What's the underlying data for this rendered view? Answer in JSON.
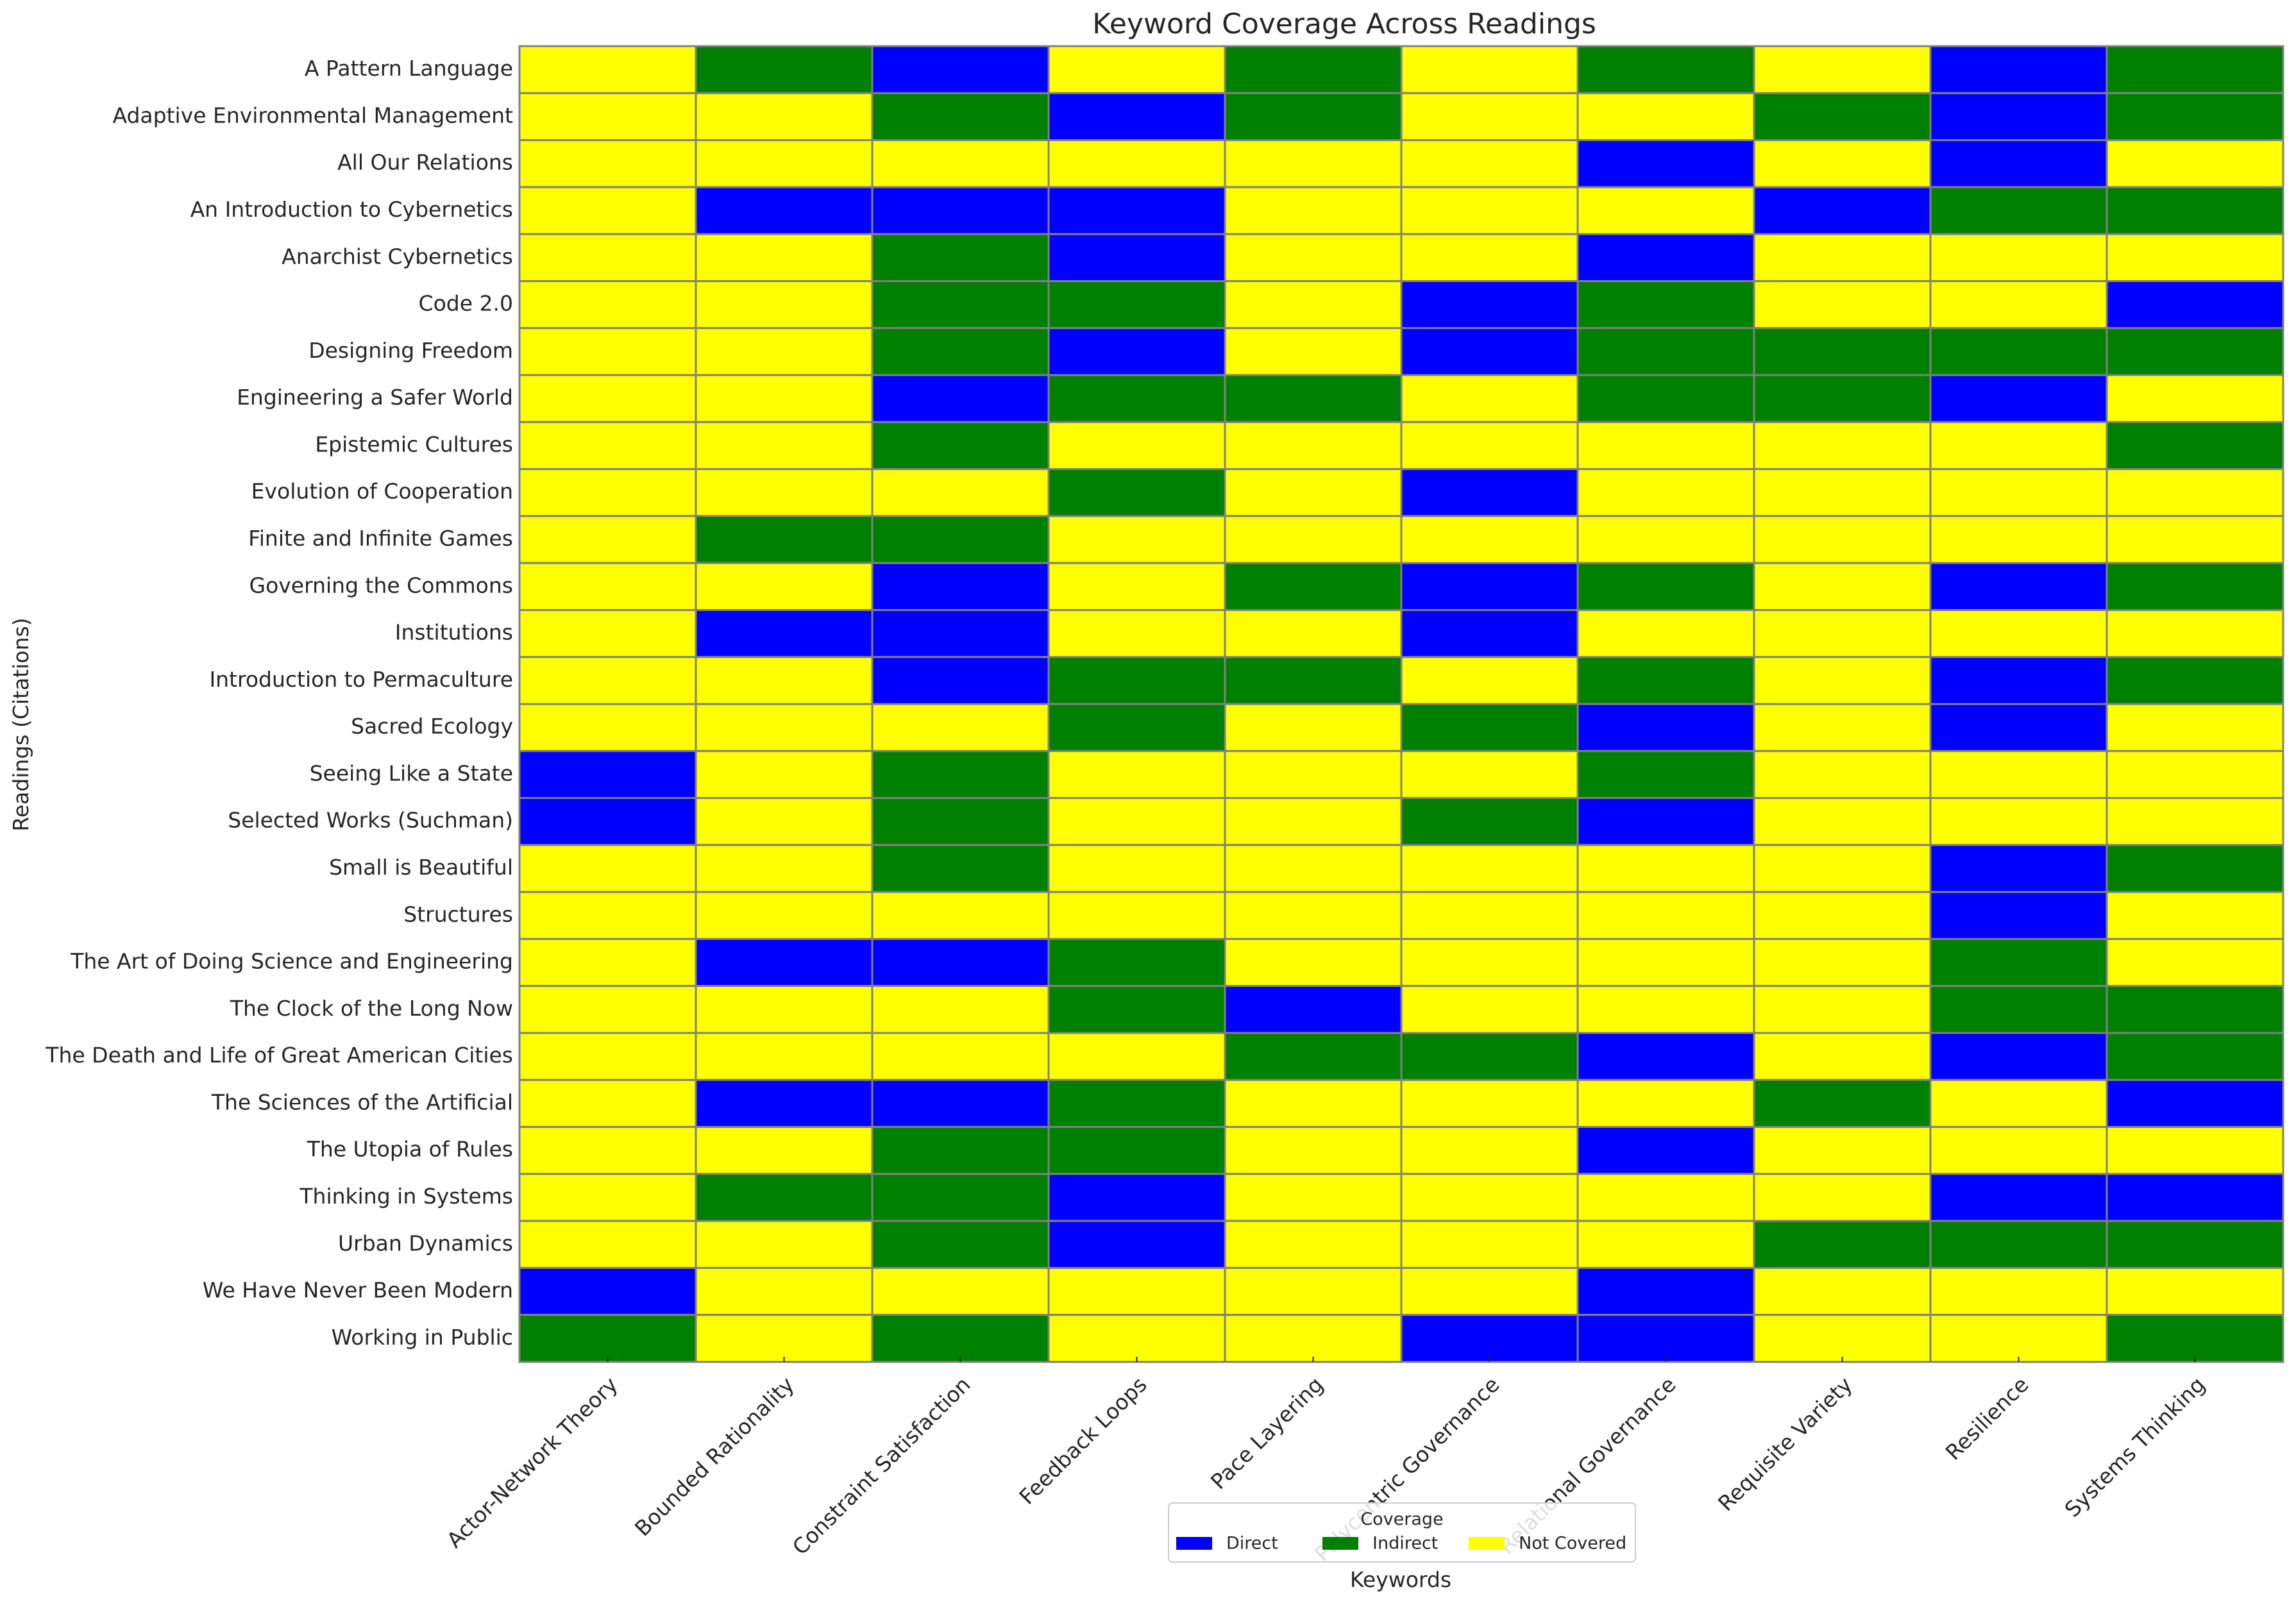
{
  "chart_data": {
    "type": "heatmap",
    "title": "Keyword Coverage Across Readings",
    "xlabel": "Keywords",
    "ylabel": "Readings (Citations)",
    "columns": [
      "Actor-Network Theory",
      "Bounded Rationality",
      "Constraint Satisfaction",
      "Feedback Loops",
      "Pace Layering",
      "Polycentric Governance",
      "Relational Governance",
      "Requisite Variety",
      "Resilience",
      "Systems Thinking"
    ],
    "rows": [
      "A Pattern Language",
      "Adaptive Environmental Management",
      "All Our Relations",
      "An Introduction to Cybernetics",
      "Anarchist Cybernetics",
      "Code 2.0",
      "Designing Freedom",
      "Engineering a Safer World",
      "Epistemic Cultures",
      "Evolution of Cooperation",
      "Finite and Infinite Games",
      "Governing the Commons",
      "Institutions",
      "Introduction to Permaculture",
      "Sacred Ecology",
      "Seeing Like a State",
      "Selected Works (Suchman)",
      "Small is Beautiful",
      "Structures",
      "The Art of Doing Science and Engineering",
      "The Clock of the Long Now",
      "The Death and Life of Great American Cities",
      "The Sciences of the Artificial",
      "The Utopia of Rules",
      "Thinking in Systems",
      "Urban Dynamics",
      "We Have Never Been Modern",
      "Working in Public"
    ],
    "categories": [
      "Direct",
      "Indirect",
      "Not Covered"
    ],
    "colors": {
      "Direct": "#0000ff",
      "Indirect": "#008000",
      "Not Covered": "#ffff00"
    },
    "values": [
      [
        "Not Covered",
        "Indirect",
        "Direct",
        "Not Covered",
        "Indirect",
        "Not Covered",
        "Indirect",
        "Not Covered",
        "Direct",
        "Indirect"
      ],
      [
        "Not Covered",
        "Not Covered",
        "Indirect",
        "Direct",
        "Indirect",
        "Not Covered",
        "Not Covered",
        "Indirect",
        "Direct",
        "Indirect"
      ],
      [
        "Not Covered",
        "Not Covered",
        "Not Covered",
        "Not Covered",
        "Not Covered",
        "Not Covered",
        "Direct",
        "Not Covered",
        "Direct",
        "Not Covered"
      ],
      [
        "Not Covered",
        "Direct",
        "Direct",
        "Direct",
        "Not Covered",
        "Not Covered",
        "Not Covered",
        "Direct",
        "Indirect",
        "Indirect"
      ],
      [
        "Not Covered",
        "Not Covered",
        "Indirect",
        "Direct",
        "Not Covered",
        "Not Covered",
        "Direct",
        "Not Covered",
        "Not Covered",
        "Not Covered"
      ],
      [
        "Not Covered",
        "Not Covered",
        "Indirect",
        "Indirect",
        "Not Covered",
        "Direct",
        "Indirect",
        "Not Covered",
        "Not Covered",
        "Direct"
      ],
      [
        "Not Covered",
        "Not Covered",
        "Indirect",
        "Direct",
        "Not Covered",
        "Direct",
        "Indirect",
        "Indirect",
        "Indirect",
        "Indirect"
      ],
      [
        "Not Covered",
        "Not Covered",
        "Direct",
        "Indirect",
        "Indirect",
        "Not Covered",
        "Indirect",
        "Indirect",
        "Direct",
        "Not Covered"
      ],
      [
        "Not Covered",
        "Not Covered",
        "Indirect",
        "Not Covered",
        "Not Covered",
        "Not Covered",
        "Not Covered",
        "Not Covered",
        "Not Covered",
        "Indirect"
      ],
      [
        "Not Covered",
        "Not Covered",
        "Not Covered",
        "Indirect",
        "Not Covered",
        "Direct",
        "Not Covered",
        "Not Covered",
        "Not Covered",
        "Not Covered"
      ],
      [
        "Not Covered",
        "Indirect",
        "Indirect",
        "Not Covered",
        "Not Covered",
        "Not Covered",
        "Not Covered",
        "Not Covered",
        "Not Covered",
        "Not Covered"
      ],
      [
        "Not Covered",
        "Not Covered",
        "Direct",
        "Not Covered",
        "Indirect",
        "Direct",
        "Indirect",
        "Not Covered",
        "Direct",
        "Indirect"
      ],
      [
        "Not Covered",
        "Direct",
        "Direct",
        "Not Covered",
        "Not Covered",
        "Direct",
        "Not Covered",
        "Not Covered",
        "Not Covered",
        "Not Covered"
      ],
      [
        "Not Covered",
        "Not Covered",
        "Direct",
        "Indirect",
        "Indirect",
        "Not Covered",
        "Indirect",
        "Not Covered",
        "Direct",
        "Indirect"
      ],
      [
        "Not Covered",
        "Not Covered",
        "Not Covered",
        "Indirect",
        "Not Covered",
        "Indirect",
        "Direct",
        "Not Covered",
        "Direct",
        "Not Covered"
      ],
      [
        "Direct",
        "Not Covered",
        "Indirect",
        "Not Covered",
        "Not Covered",
        "Not Covered",
        "Indirect",
        "Not Covered",
        "Not Covered",
        "Not Covered"
      ],
      [
        "Direct",
        "Not Covered",
        "Indirect",
        "Not Covered",
        "Not Covered",
        "Indirect",
        "Direct",
        "Not Covered",
        "Not Covered",
        "Not Covered"
      ],
      [
        "Not Covered",
        "Not Covered",
        "Indirect",
        "Not Covered",
        "Not Covered",
        "Not Covered",
        "Not Covered",
        "Not Covered",
        "Direct",
        "Indirect"
      ],
      [
        "Not Covered",
        "Not Covered",
        "Not Covered",
        "Not Covered",
        "Not Covered",
        "Not Covered",
        "Not Covered",
        "Not Covered",
        "Direct",
        "Not Covered"
      ],
      [
        "Not Covered",
        "Direct",
        "Direct",
        "Indirect",
        "Not Covered",
        "Not Covered",
        "Not Covered",
        "Not Covered",
        "Indirect",
        "Not Covered"
      ],
      [
        "Not Covered",
        "Not Covered",
        "Not Covered",
        "Indirect",
        "Direct",
        "Not Covered",
        "Not Covered",
        "Not Covered",
        "Indirect",
        "Indirect"
      ],
      [
        "Not Covered",
        "Not Covered",
        "Not Covered",
        "Not Covered",
        "Indirect",
        "Indirect",
        "Direct",
        "Not Covered",
        "Direct",
        "Indirect"
      ],
      [
        "Not Covered",
        "Direct",
        "Direct",
        "Indirect",
        "Not Covered",
        "Not Covered",
        "Not Covered",
        "Indirect",
        "Not Covered",
        "Direct"
      ],
      [
        "Not Covered",
        "Not Covered",
        "Indirect",
        "Indirect",
        "Not Covered",
        "Not Covered",
        "Direct",
        "Not Covered",
        "Not Covered",
        "Not Covered"
      ],
      [
        "Not Covered",
        "Indirect",
        "Indirect",
        "Direct",
        "Not Covered",
        "Not Covered",
        "Not Covered",
        "Not Covered",
        "Direct",
        "Direct"
      ],
      [
        "Not Covered",
        "Not Covered",
        "Indirect",
        "Direct",
        "Not Covered",
        "Not Covered",
        "Not Covered",
        "Indirect",
        "Indirect",
        "Indirect"
      ],
      [
        "Direct",
        "Not Covered",
        "Not Covered",
        "Not Covered",
        "Not Covered",
        "Not Covered",
        "Direct",
        "Not Covered",
        "Not Covered",
        "Not Covered"
      ],
      [
        "Indirect",
        "Not Covered",
        "Indirect",
        "Not Covered",
        "Not Covered",
        "Direct",
        "Direct",
        "Not Covered",
        "Not Covered",
        "Indirect"
      ]
    ],
    "legend": {
      "title": "Coverage",
      "position": "bottom-center"
    },
    "grid": false
  }
}
